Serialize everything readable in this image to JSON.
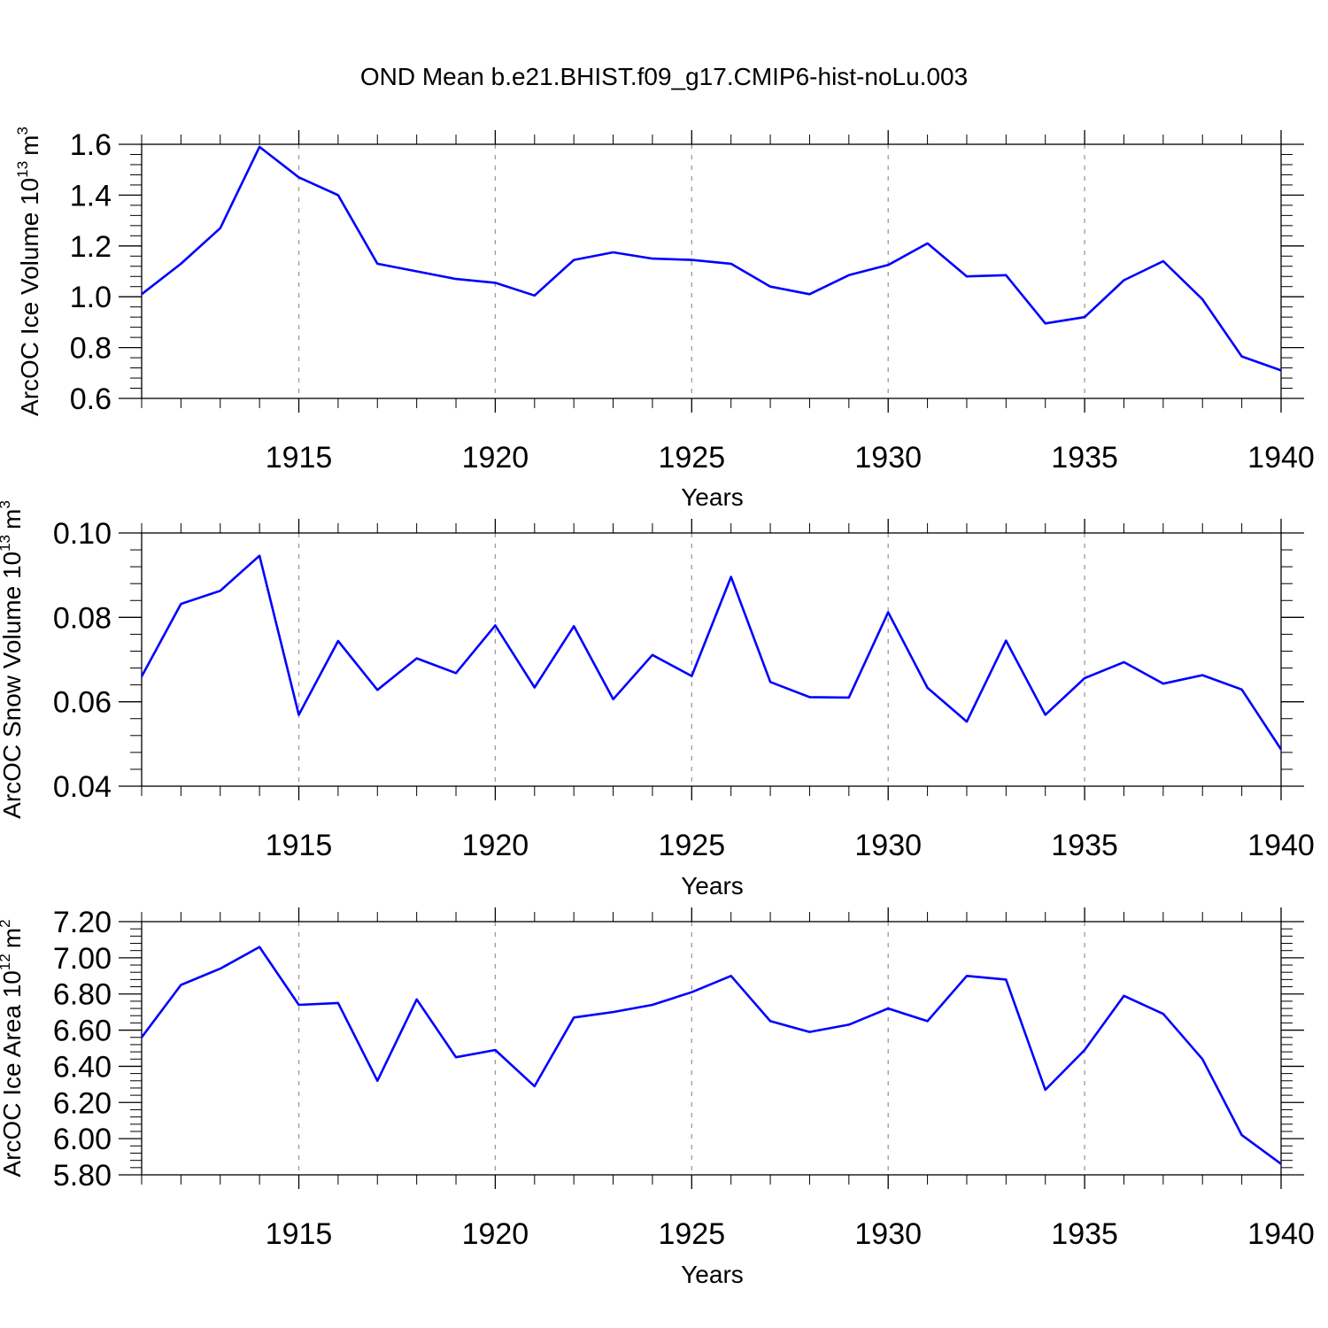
{
  "title": "OND Mean b.e21.BHIST.f09_g17.CMIP6-hist-noLu.003",
  "line_color": "#0000ff",
  "chart_data": [
    {
      "type": "line",
      "x": [
        1911,
        1912,
        1913,
        1914,
        1915,
        1916,
        1917,
        1918,
        1919,
        1920,
        1921,
        1922,
        1923,
        1924,
        1925,
        1926,
        1927,
        1928,
        1929,
        1930,
        1931,
        1932,
        1933,
        1934,
        1935,
        1936,
        1937,
        1938,
        1939,
        1940
      ],
      "values": [
        1.01,
        1.13,
        1.27,
        1.59,
        1.47,
        1.4,
        1.13,
        1.1,
        1.07,
        1.055,
        1.005,
        1.145,
        1.175,
        1.15,
        1.145,
        1.13,
        1.04,
        1.01,
        1.085,
        1.125,
        1.21,
        1.08,
        1.085,
        0.895,
        0.92,
        1.065,
        1.14,
        0.99,
        0.765,
        0.71
      ],
      "ylabel": "ArcOC Ice Volume 10",
      "ylabel_exp": "13",
      "ylabel_unit": "m",
      "ylabel_unit_exp": "3",
      "xlabel": "Years",
      "ylim": [
        0.6,
        1.6
      ],
      "yticks": [
        "0.6",
        "0.8",
        "1.0",
        "1.2",
        "1.4",
        "1.6"
      ],
      "xlim": [
        1911,
        1940
      ],
      "xticks": [
        "1915",
        "1920",
        "1925",
        "1930",
        "1935",
        "1940"
      ]
    },
    {
      "type": "line",
      "x": [
        1911,
        1912,
        1913,
        1914,
        1915,
        1916,
        1917,
        1918,
        1919,
        1920,
        1921,
        1922,
        1923,
        1924,
        1925,
        1926,
        1927,
        1928,
        1929,
        1930,
        1931,
        1932,
        1933,
        1934,
        1935,
        1936,
        1937,
        1938,
        1939,
        1940
      ],
      "values": [
        0.066,
        0.0832,
        0.0863,
        0.0946,
        0.0569,
        0.0744,
        0.0628,
        0.0703,
        0.0668,
        0.0781,
        0.0634,
        0.0779,
        0.0606,
        0.0711,
        0.0661,
        0.0896,
        0.0647,
        0.0611,
        0.061,
        0.0812,
        0.0633,
        0.0553,
        0.0745,
        0.0569,
        0.0656,
        0.0694,
        0.0643,
        0.0663,
        0.0629,
        0.0487
      ],
      "ylabel": "ArcOC Snow Volume 10",
      "ylabel_exp": "13",
      "ylabel_unit": "m",
      "ylabel_unit_exp": "3",
      "xlabel": "Years",
      "ylim": [
        0.04,
        0.1
      ],
      "yticks": [
        "0.04",
        "0.06",
        "0.08",
        "0.10"
      ],
      "xlim": [
        1911,
        1940
      ],
      "xticks": [
        "1915",
        "1920",
        "1925",
        "1930",
        "1935",
        "1940"
      ]
    },
    {
      "type": "line",
      "x": [
        1911,
        1912,
        1913,
        1914,
        1915,
        1916,
        1917,
        1918,
        1919,
        1920,
        1921,
        1922,
        1923,
        1924,
        1925,
        1926,
        1927,
        1928,
        1929,
        1930,
        1931,
        1932,
        1933,
        1934,
        1935,
        1936,
        1937,
        1938,
        1939,
        1940
      ],
      "values": [
        6.56,
        6.85,
        6.94,
        7.06,
        6.74,
        6.75,
        6.32,
        6.77,
        6.45,
        6.49,
        6.29,
        6.67,
        6.7,
        6.74,
        6.81,
        6.9,
        6.65,
        6.59,
        6.63,
        6.72,
        6.65,
        6.9,
        6.88,
        6.27,
        6.49,
        6.79,
        6.69,
        6.44,
        6.02,
        5.86
      ],
      "ylabel": "ArcOC Ice Area 10",
      "ylabel_exp": "12",
      "ylabel_unit": "m",
      "ylabel_unit_exp": "2",
      "xlabel": "Years",
      "ylim": [
        5.8,
        7.2
      ],
      "yticks": [
        "5.80",
        "6.00",
        "6.20",
        "6.40",
        "6.60",
        "6.80",
        "7.00",
        "7.20"
      ],
      "xlim": [
        1911,
        1940
      ],
      "xticks": [
        "1915",
        "1920",
        "1925",
        "1930",
        "1935",
        "1940"
      ]
    }
  ]
}
